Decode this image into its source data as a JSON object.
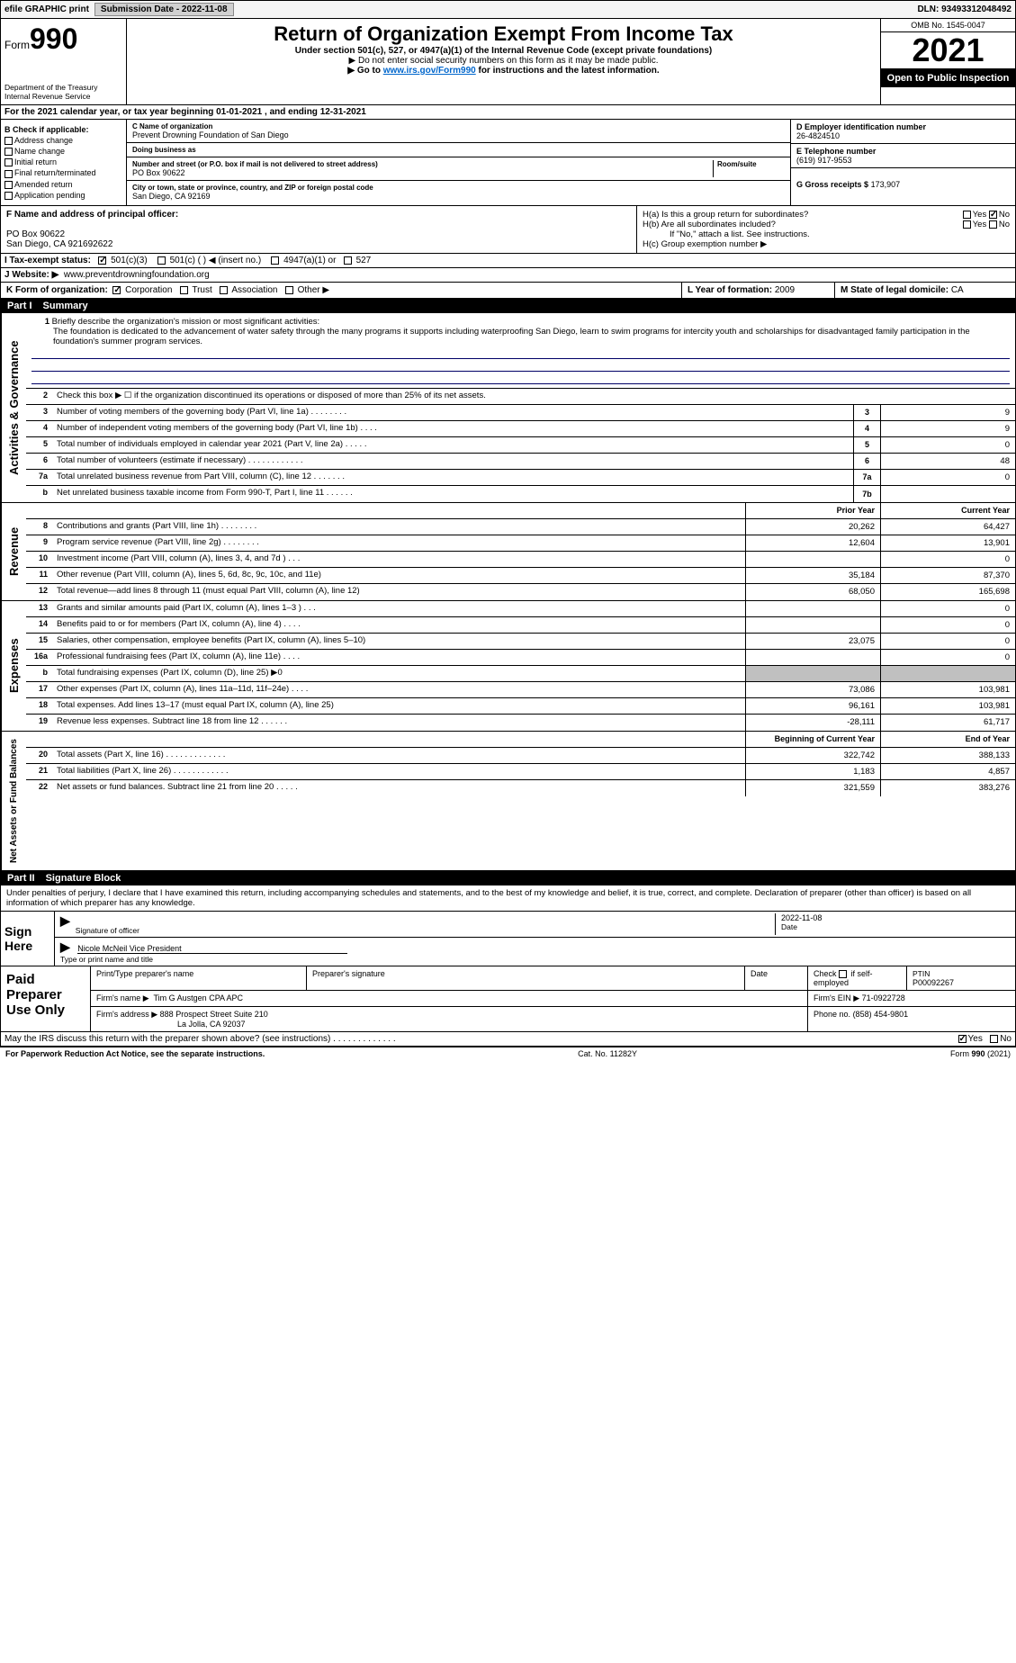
{
  "topbar": {
    "efile": "efile GRAPHIC print",
    "submission_btn": "Submission Date - 2022-11-08",
    "dln_label": "DLN:",
    "dln": "93493312048492"
  },
  "header": {
    "form_small": "Form",
    "form_big": "990",
    "dept": "Department of the Treasury",
    "irs": "Internal Revenue Service",
    "title": "Return of Organization Exempt From Income Tax",
    "sub1": "Under section 501(c), 527, or 4947(a)(1) of the Internal Revenue Code (except private foundations)",
    "sub2": "▶ Do not enter social security numbers on this form as it may be made public.",
    "sub3_pre": "▶ Go to ",
    "sub3_link": "www.irs.gov/Form990",
    "sub3_post": " for instructions and the latest information.",
    "omb": "OMB No. 1545-0047",
    "year": "2021",
    "open": "Open to Public Inspection"
  },
  "lineA": "For the 2021 calendar year, or tax year beginning 01-01-2021    , and ending 12-31-2021",
  "boxB": {
    "label": "B Check if applicable:",
    "items": [
      "Address change",
      "Name change",
      "Initial return",
      "Final return/terminated",
      "Amended return",
      "Application pending"
    ]
  },
  "boxC": {
    "name_label": "C Name of organization",
    "name": "Prevent Drowning Foundation of San Diego",
    "dba_label": "Doing business as",
    "dba": "",
    "street_label": "Number and street (or P.O. box if mail is not delivered to street address)",
    "room_label": "Room/suite",
    "street": "PO Box 90622",
    "city_label": "City or town, state or province, country, and ZIP or foreign postal code",
    "city": "San Diego, CA  92169"
  },
  "boxD": {
    "label": "D Employer identification number",
    "value": "26-4824510"
  },
  "boxE": {
    "label": "E Telephone number",
    "value": "(619) 917-9553"
  },
  "boxG": {
    "label": "G Gross receipts $",
    "value": "173,907"
  },
  "boxF": {
    "label": "F  Name and address of principal officer:",
    "line1": "PO Box 90622",
    "line2": "San Diego, CA  921692622"
  },
  "boxH": {
    "a": "H(a)  Is this a group return for subordinates?",
    "b": "H(b)  Are all subordinates included?",
    "b_note": "If \"No,\" attach a list. See instructions.",
    "c": "H(c)  Group exemption number ▶",
    "yes": "Yes",
    "no": "No"
  },
  "boxI": {
    "label": "I     Tax-exempt status:",
    "o1": "501(c)(3)",
    "o2": "501(c) (   ) ◀ (insert no.)",
    "o3": "4947(a)(1) or",
    "o4": "527"
  },
  "boxJ": {
    "label": "J    Website: ▶",
    "value": "www.preventdrowningfoundation.org"
  },
  "boxK": {
    "label": "K Form of organization:",
    "o1": "Corporation",
    "o2": "Trust",
    "o3": "Association",
    "o4": "Other ▶"
  },
  "boxL": {
    "label": "L Year of formation:",
    "value": "2009"
  },
  "boxM": {
    "label": "M State of legal domicile:",
    "value": "CA"
  },
  "part1": {
    "num": "Part I",
    "title": "Summary"
  },
  "mission": {
    "num": "1",
    "label": "Briefly describe the organization's mission or most significant activities:",
    "text": "The foundation is dedicated to the advancement of water safety through the many programs it supports including waterproofing San Diego, learn to swim programs for intercity youth and scholarships for disadvantaged family participation in the foundation's summer program services."
  },
  "vlabels": {
    "gov": "Activities & Governance",
    "rev": "Revenue",
    "exp": "Expenses",
    "net": "Net Assets or Fund Balances"
  },
  "lines_gov": [
    {
      "n": "2",
      "t": "Check this box ▶ ☐  if the organization discontinued its operations or disposed of more than 25% of its net assets.",
      "box": "",
      "v": ""
    },
    {
      "n": "3",
      "t": "Number of voting members of the governing body (Part VI, line 1a)   .    .    .    .    .    .    .    .",
      "box": "3",
      "v": "9"
    },
    {
      "n": "4",
      "t": "Number of independent voting members of the governing body (Part VI, line 1b)   .    .    .    .",
      "box": "4",
      "v": "9"
    },
    {
      "n": "5",
      "t": "Total number of individuals employed in calendar year 2021 (Part V, line 2a)   .    .    .    .    .",
      "box": "5",
      "v": "0"
    },
    {
      "n": "6",
      "t": "Total number of volunteers (estimate if necessary)   .    .    .    .    .    .    .    .    .    .    .    .",
      "box": "6",
      "v": "48"
    },
    {
      "n": "7a",
      "t": "Total unrelated business revenue from Part VIII, column (C), line 12   .    .    .    .    .    .    .",
      "box": "7a",
      "v": "0"
    },
    {
      "n": "b",
      "t": "Net unrelated business taxable income from Form 990-T, Part I, line 11   .    .    .    .    .    .",
      "box": "7b",
      "v": ""
    }
  ],
  "col_headers": {
    "prior": "Prior Year",
    "current": "Current Year",
    "begin": "Beginning of Current Year",
    "end": "End of Year"
  },
  "lines_rev": [
    {
      "n": "8",
      "t": "Contributions and grants (Part VIII, line 1h)   .    .    .    .    .    .    .    .",
      "p": "20,262",
      "c": "64,427"
    },
    {
      "n": "9",
      "t": "Program service revenue (Part VIII, line 2g)   .    .    .    .    .    .    .    .",
      "p": "12,604",
      "c": "13,901"
    },
    {
      "n": "10",
      "t": "Investment income (Part VIII, column (A), lines 3, 4, and 7d )   .    .    .",
      "p": "",
      "c": "0"
    },
    {
      "n": "11",
      "t": "Other revenue (Part VIII, column (A), lines 5, 6d, 8c, 9c, 10c, and 11e)",
      "p": "35,184",
      "c": "87,370"
    },
    {
      "n": "12",
      "t": "Total revenue—add lines 8 through 11 (must equal Part VIII, column (A), line 12)",
      "p": "68,050",
      "c": "165,698"
    }
  ],
  "lines_exp": [
    {
      "n": "13",
      "t": "Grants and similar amounts paid (Part IX, column (A), lines 1–3 )   .    .    .",
      "p": "",
      "c": "0"
    },
    {
      "n": "14",
      "t": "Benefits paid to or for members (Part IX, column (A), line 4)   .    .    .    .",
      "p": "",
      "c": "0"
    },
    {
      "n": "15",
      "t": "Salaries, other compensation, employee benefits (Part IX, column (A), lines 5–10)",
      "p": "23,075",
      "c": "0"
    },
    {
      "n": "16a",
      "t": "Professional fundraising fees (Part IX, column (A), line 11e)   .    .    .    .",
      "p": "",
      "c": "0"
    },
    {
      "n": "b",
      "t": "Total fundraising expenses (Part IX, column (D), line 25) ▶0",
      "p": "GREY",
      "c": "GREY"
    },
    {
      "n": "17",
      "t": "Other expenses (Part IX, column (A), lines 11a–11d, 11f–24e)   .    .    .    .",
      "p": "73,086",
      "c": "103,981"
    },
    {
      "n": "18",
      "t": "Total expenses. Add lines 13–17 (must equal Part IX, column (A), line 25)",
      "p": "96,161",
      "c": "103,981"
    },
    {
      "n": "19",
      "t": "Revenue less expenses. Subtract line 18 from line 12   .    .    .    .    .    .",
      "p": "-28,111",
      "c": "61,717"
    }
  ],
  "lines_net": [
    {
      "n": "20",
      "t": "Total assets (Part X, line 16)   .    .    .    .    .    .    .    .    .    .    .    .    .",
      "p": "322,742",
      "c": "388,133"
    },
    {
      "n": "21",
      "t": "Total liabilities (Part X, line 26)   .    .    .    .    .    .    .    .    .    .    .    .",
      "p": "1,183",
      "c": "4,857"
    },
    {
      "n": "22",
      "t": "Net assets or fund balances. Subtract line 21 from line 20   .    .    .    .    .",
      "p": "321,559",
      "c": "383,276"
    }
  ],
  "part2": {
    "num": "Part II",
    "title": "Signature Block"
  },
  "penalties": "Under penalties of perjury, I declare that I have examined this return, including accompanying schedules and statements, and to the best of my knowledge and belief, it is true, correct, and complete. Declaration of preparer (other than officer) is based on all information of which preparer has any knowledge.",
  "sign": {
    "here": "Sign Here",
    "sig_label": "Signature of officer",
    "date": "2022-11-08",
    "date_label": "Date",
    "name": "Nicole McNeil  Vice President",
    "name_label": "Type or print name and title"
  },
  "paid": {
    "title": "Paid Preparer Use Only",
    "h1": "Print/Type preparer's name",
    "h2": "Preparer's signature",
    "h3": "Date",
    "h4_pre": "Check",
    "h4_post": "if self-employed",
    "h5": "PTIN",
    "ptin": "P00092267",
    "firm_label": "Firm's name    ▶",
    "firm": "Tim G Austgen CPA APC",
    "ein_label": "Firm's EIN ▶",
    "ein": "71-0922728",
    "addr_label": "Firm's address ▶",
    "addr1": "888 Prospect Street Suite 210",
    "addr2": "La Jolla, CA  92037",
    "phone_label": "Phone no.",
    "phone": "(858) 454-9801"
  },
  "discuss": {
    "text": "May the IRS discuss this return with the preparer shown above? (see instructions)   .    .    .    .    .    .    .    .    .    .    .    .    .",
    "yes": "Yes",
    "no": "No"
  },
  "footer": {
    "left": "For Paperwork Reduction Act Notice, see the separate instructions.",
    "mid": "Cat. No. 11282Y",
    "right_pre": "Form ",
    "right_form": "990",
    "right_post": " (2021)"
  },
  "colors": {
    "link": "#0066cc",
    "black": "#000000",
    "grey_fill": "#c0c0c0",
    "page_bg": "#ffffff"
  }
}
